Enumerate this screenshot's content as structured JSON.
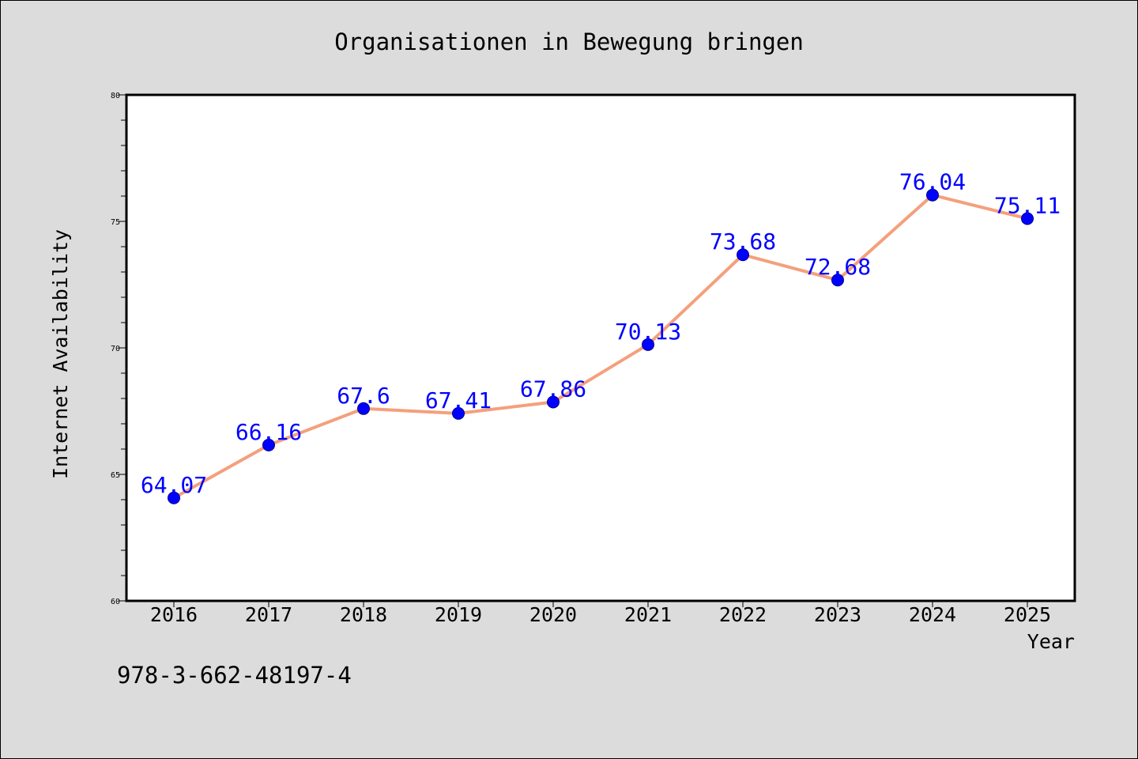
{
  "colors": {
    "background": "#dcdcdc",
    "plot_background": "#ffffff",
    "line": "#f4a07c",
    "marker": "#0000ff",
    "marker_edge": "#00008b",
    "data_label": "#0000ff",
    "text": "#000000"
  },
  "footer_code": "978-3-662-48197-4",
  "chart_data": {
    "type": "line",
    "title": "Organisationen in Bewegung bringen",
    "xlabel": "Year",
    "ylabel": "Internet Availability",
    "categories": [
      "2016",
      "2017",
      "2018",
      "2019",
      "2020",
      "2021",
      "2022",
      "2023",
      "2024",
      "2025"
    ],
    "series": [
      {
        "values": [
          64.07,
          66.16,
          67.6,
          67.41,
          67.86,
          70.13,
          73.68,
          72.68,
          76.04,
          75.11
        ],
        "labels": [
          "64.07",
          "66.16",
          "67.6",
          "67.41",
          "67.86",
          "70.13",
          "73.68",
          "72.68",
          "76.04",
          "75.11"
        ]
      }
    ],
    "ylim": [
      60,
      80
    ],
    "yticks": [
      "60",
      "65",
      "70",
      "75",
      "80"
    ],
    "grid": false,
    "legend": "none"
  }
}
